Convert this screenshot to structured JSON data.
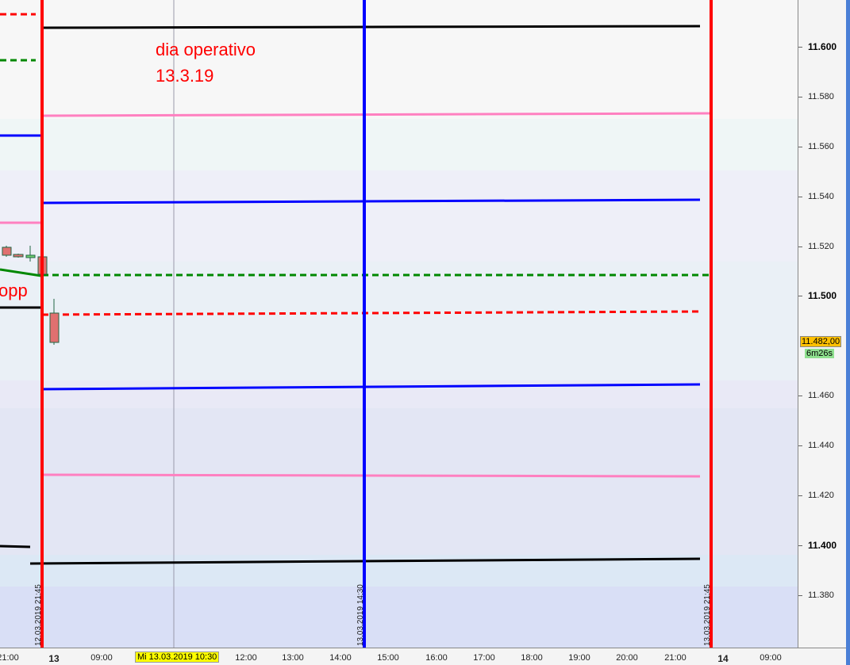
{
  "chart": {
    "annotation": {
      "line1": "dia operativo",
      "line2": "13.3.19"
    },
    "side_text": "opp",
    "y_axis": {
      "labels": [
        {
          "v": "11.600",
          "bold": true
        },
        {
          "v": "11.580"
        },
        {
          "v": "11.560"
        },
        {
          "v": "11.540"
        },
        {
          "v": "11.520"
        },
        {
          "v": "11.500",
          "bold": true
        },
        {
          "v": "11.480"
        },
        {
          "v": "11.460"
        },
        {
          "v": "11.440"
        },
        {
          "v": "11.420"
        },
        {
          "v": "11.400",
          "bold": true
        },
        {
          "v": "11.380"
        }
      ]
    },
    "last_price": "11.482,00",
    "timer": "6m26s",
    "x_axis": {
      "labels": [
        "21:00",
        "13",
        "09:00",
        "12:00",
        "13:00",
        "14:00",
        "15:00",
        "16:00",
        "17:00",
        "18:00",
        "19:00",
        "20:00",
        "21:00",
        "14",
        "09:00"
      ],
      "cursor": "Mi 13.03.2019 10:30"
    },
    "vertical_lines": [
      {
        "label": "12.03.2019 21:45",
        "color": "#ff0000"
      },
      {
        "label": "13.03.2019 14:30",
        "color": "#0000ff"
      },
      {
        "label": "13.03.2019 21:45",
        "color": "#ff0000"
      }
    ],
    "colors": {
      "black": "#000000",
      "pink": "#ff80c0",
      "blue": "#0000ff",
      "red": "#ff0000",
      "green": "#008000",
      "candle": "#e07070"
    }
  }
}
